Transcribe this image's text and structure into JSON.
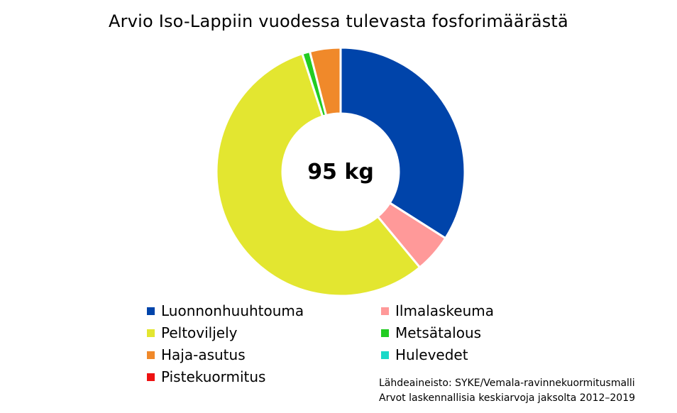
{
  "chart_data": {
    "type": "pie",
    "title": "Arvio Iso-Lappiin vuodessa tulevasta fosforimäärästä",
    "center_label": "95 kg",
    "categories": [
      "Luonnonhuuhtouma",
      "Ilmalaskeuma",
      "Peltoviljely",
      "Metsätalous",
      "Haja-asutus",
      "Hulevedet",
      "Pistekuormitus"
    ],
    "values": [
      34,
      5,
      56,
      1,
      4,
      0,
      0
    ],
    "unit": "%",
    "colors": [
      "#0044aa",
      "#ff9999",
      "#e3e630",
      "#22cc22",
      "#f0892a",
      "#1ad9c8",
      "#ee1111"
    ],
    "legend_position": "bottom"
  },
  "source": {
    "line1": "Lähdeaineisto: SYKE/Vemala-ravinnekuormitusmalli",
    "line2": "Arvot laskennallisia keskiarvoja jaksolta 2012–2019"
  }
}
